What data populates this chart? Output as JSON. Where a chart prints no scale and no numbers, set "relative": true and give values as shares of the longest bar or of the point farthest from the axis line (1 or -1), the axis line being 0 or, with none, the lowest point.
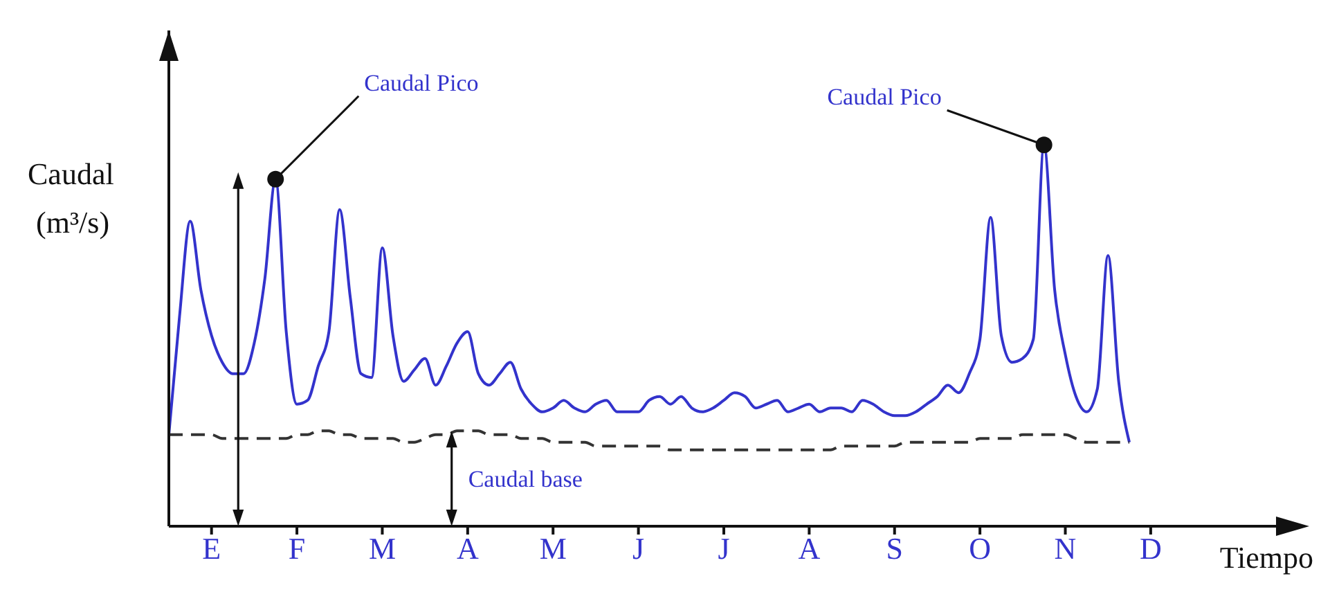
{
  "chart_data": {
    "type": "line",
    "relative": true,
    "xlabel": "Tiempo",
    "ylabel": "Caudal (m³/s)",
    "categories": [
      null,
      null,
      null,
      null,
      "E",
      null,
      null,
      null,
      null,
      null,
      null,
      null,
      "F",
      null,
      null,
      null,
      null,
      null,
      null,
      null,
      "M",
      null,
      null,
      null,
      null,
      null,
      null,
      null,
      "A",
      null,
      null,
      null,
      null,
      null,
      null,
      null,
      "M",
      null,
      null,
      null,
      null,
      null,
      null,
      null,
      "J",
      null,
      null,
      null,
      null,
      null,
      null,
      null,
      "J",
      null,
      null,
      null,
      null,
      null,
      null,
      null,
      "A",
      null,
      null,
      null,
      null,
      null,
      null,
      null,
      "S",
      null,
      null,
      null,
      null,
      null,
      null,
      null,
      "O",
      null,
      null,
      null,
      null,
      null,
      null,
      null,
      "N",
      null,
      null,
      null,
      null,
      null,
      null,
      null,
      "D",
      null,
      null,
      null,
      null,
      null
    ],
    "grid": false,
    "legend": false,
    "marker": "none",
    "series": [
      {
        "color": "#3333cc",
        "line_style": "solid",
        "values": [
          0.24,
          0.55,
          0.8,
          0.62,
          0.5,
          0.43,
          0.4,
          0.4,
          0.48,
          0.65,
          0.91,
          0.51,
          0.32,
          0.33,
          0.42,
          0.51,
          0.83,
          0.6,
          0.4,
          0.39,
          0.73,
          0.5,
          0.38,
          0.41,
          0.44,
          0.37,
          0.42,
          0.48,
          0.51,
          0.4,
          0.37,
          0.4,
          0.43,
          0.36,
          0.32,
          0.3,
          0.31,
          0.33,
          0.31,
          0.3,
          0.32,
          0.33,
          0.3,
          0.3,
          0.3,
          0.33,
          0.34,
          0.32,
          0.34,
          0.31,
          0.3,
          0.31,
          0.33,
          0.35,
          0.34,
          0.31,
          0.32,
          0.33,
          0.3,
          0.31,
          0.32,
          0.3,
          0.31,
          0.31,
          0.3,
          0.33,
          0.32,
          0.3,
          0.29,
          0.29,
          0.3,
          0.32,
          0.34,
          0.37,
          0.35,
          0.4,
          0.49,
          0.81,
          0.5,
          0.43,
          0.44,
          0.49,
          1.0,
          0.62,
          0.45,
          0.34,
          0.3,
          0.36,
          0.71,
          0.38,
          0.22,
          null,
          null,
          null,
          null,
          null,
          null,
          null
        ]
      },
      {
        "color": "#333333",
        "line_style": "dashed",
        "values": [
          0.24,
          0.24,
          0.24,
          0.24,
          0.24,
          0.23,
          0.23,
          0.23,
          0.23,
          0.23,
          0.23,
          0.23,
          0.24,
          0.24,
          0.25,
          0.25,
          0.24,
          0.24,
          0.23,
          0.23,
          0.23,
          0.23,
          0.22,
          0.22,
          0.23,
          0.24,
          0.24,
          0.25,
          0.25,
          0.25,
          0.24,
          0.24,
          0.24,
          0.23,
          0.23,
          0.23,
          0.22,
          0.22,
          0.22,
          0.22,
          0.21,
          0.21,
          0.21,
          0.21,
          0.21,
          0.21,
          0.21,
          0.2,
          0.2,
          0.2,
          0.2,
          0.2,
          0.2,
          0.2,
          0.2,
          0.2,
          0.2,
          0.2,
          0.2,
          0.2,
          0.2,
          0.2,
          0.2,
          0.21,
          0.21,
          0.21,
          0.21,
          0.21,
          0.21,
          0.22,
          0.22,
          0.22,
          0.22,
          0.22,
          0.22,
          0.22,
          0.23,
          0.23,
          0.23,
          0.23,
          0.24,
          0.24,
          0.24,
          0.24,
          0.24,
          0.23,
          0.22,
          0.22,
          0.22,
          0.22,
          0.22,
          null,
          null,
          null,
          null,
          null,
          null,
          null
        ]
      }
    ],
    "annotations": [
      "Caudal Pico",
      "Caudal Pico",
      "Caudal base"
    ]
  }
}
